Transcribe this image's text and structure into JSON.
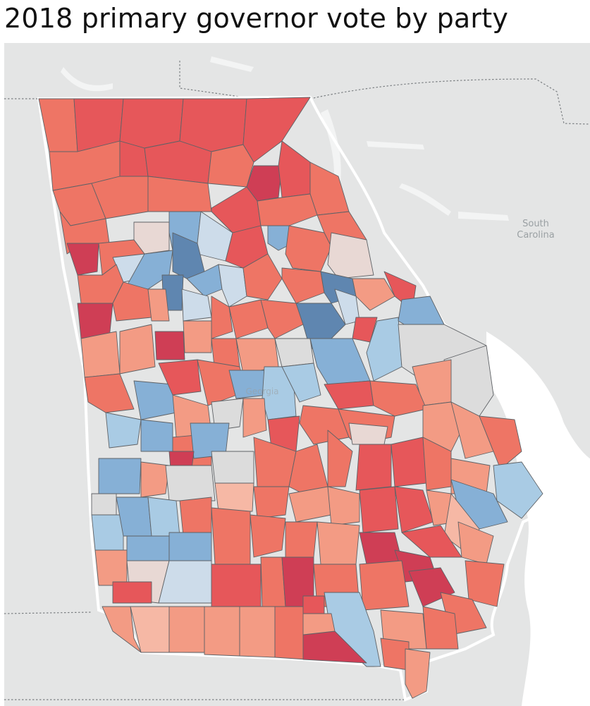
{
  "title": "2018 primary governor vote by party",
  "map": {
    "labels": {
      "sc_line1": "South",
      "sc_line2": "Carolina",
      "georgia": "Georgia"
    },
    "colors": {
      "background": "#e4e5e5",
      "ocean": "#ffffff",
      "neighbor_land": "#e4e5e5",
      "rep_strong": "#cf3e55",
      "rep": "#e6575a",
      "rep_mid": "#ee7565",
      "rep_light": "#f39b84",
      "rep_faint": "#f6b8a5",
      "neutral": "#dcdcdc",
      "neutral_warm": "#e8d8d4",
      "dem_faint": "#cddcea",
      "dem_light": "#a9cbe4",
      "dem": "#86b0d6",
      "dem_strong": "#5f86b0"
    }
  }
}
